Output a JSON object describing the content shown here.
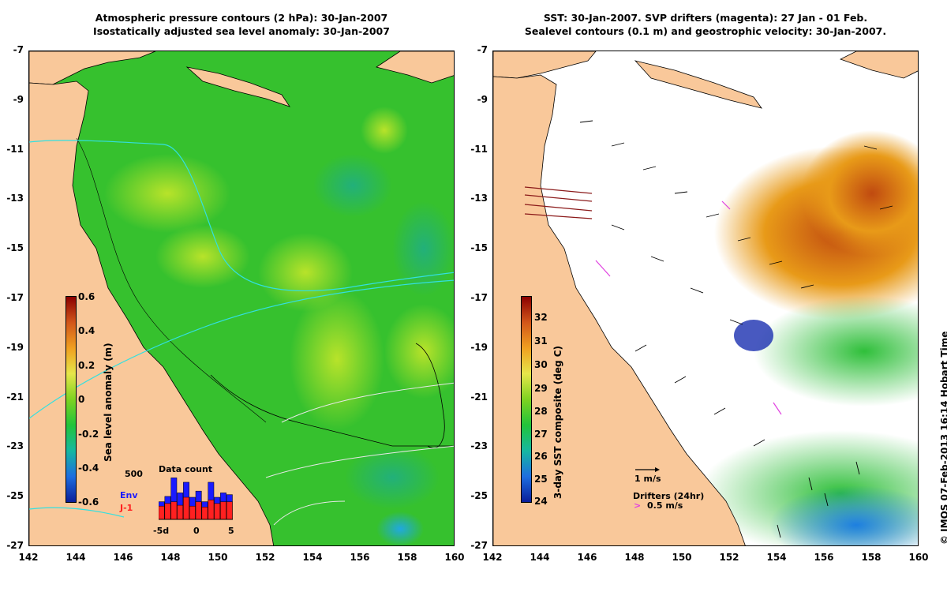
{
  "left": {
    "title_line1": "Atmospheric pressure contours (2 hPa): 30-Jan-2007",
    "title_line2": "Isostatically adjusted sea level anomaly: 30-Jan-2007",
    "colorbar": {
      "title": "Sea level anomaly (m)",
      "ticks": [
        "0.6",
        "0.4",
        "0.2",
        "0",
        "-0.2",
        "-0.4",
        "-0.6"
      ]
    },
    "inset": {
      "title": "Data count",
      "max_label": "500",
      "env_label": "Env",
      "j1_label": "J-1",
      "x_ticks": [
        "-5d",
        "0",
        "5"
      ],
      "env_counts": [
        200,
        260,
        470,
        300,
        420,
        250,
        320,
        200,
        420,
        250,
        300,
        280
      ],
      "j1_counts": [
        150,
        180,
        200,
        160,
        250,
        150,
        200,
        140,
        220,
        180,
        200,
        200
      ],
      "colors": {
        "env": "#1a1aff",
        "j1": "#ff2020"
      }
    }
  },
  "right": {
    "title_line1": "SST: 30-Jan-2007. SVP drifters (magenta): 27 Jan - 01 Feb.",
    "title_line2": "Sealevel contours (0.1 m) and geostrophic velocity: 30-Jan-2007.",
    "colorbar": {
      "title": "3-day SST composite (deg C)",
      "ticks": [
        "32",
        "31",
        "30",
        "29",
        "28",
        "27",
        "26",
        "25",
        "24"
      ]
    },
    "scale_label": "1 m/s",
    "drifters_label": "Drifters (24hr)",
    "drifter_speed": "0.5 m/s"
  },
  "axes": {
    "x_ticks": [
      "142",
      "144",
      "146",
      "148",
      "150",
      "152",
      "154",
      "156",
      "158",
      "160"
    ],
    "y_ticks": [
      "-7",
      "-9",
      "-11",
      "-13",
      "-15",
      "-17",
      "-19",
      "-21",
      "-23",
      "-25",
      "-27"
    ]
  },
  "stamp": "© IMOS 07-Feb-2013 16:14 Hobart Time",
  "colors": {
    "land": "#f9c89a",
    "ocean_green": "#33c42c",
    "sst_white": "#ffffff"
  }
}
